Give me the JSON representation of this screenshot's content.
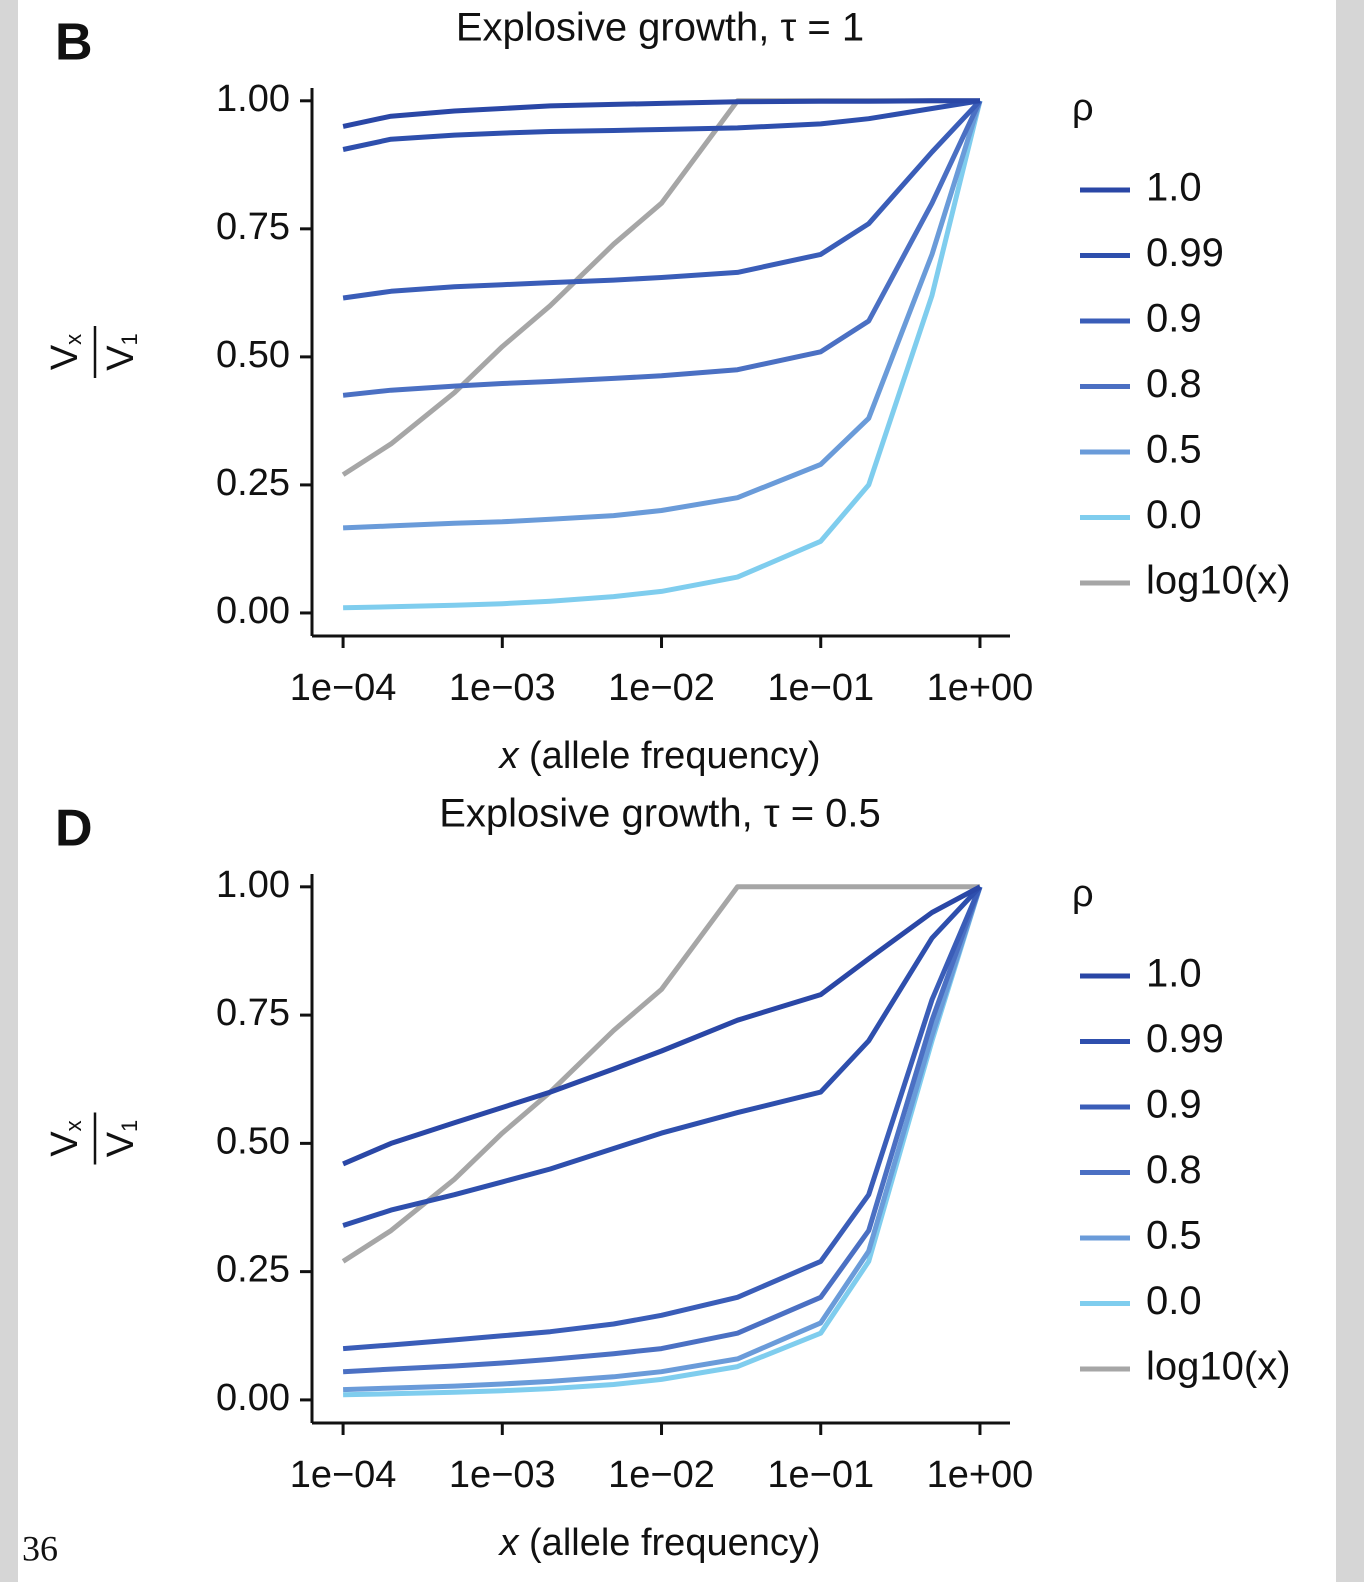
{
  "chart_data": [
    {
      "type": "line",
      "panel": "B",
      "title": "Explosive growth, τ = 1",
      "xlabel": {
        "var": "x",
        "text": "(allele frequency)"
      },
      "ylabel": {
        "num": "V",
        "num_sub": "x",
        "den": "V",
        "den_sub": "1"
      },
      "xscale": "log",
      "legend_title": "ρ",
      "legend_position": "right",
      "x": [
        0.0001,
        0.0002,
        0.0005,
        0.001,
        0.002,
        0.005,
        0.01,
        0.03,
        0.1,
        0.2,
        0.5,
        1
      ],
      "xlim": [
        6.38e-05,
        1.544
      ],
      "ylim": [
        -0.045,
        1.025
      ],
      "xticks": [
        {
          "value": 0.0001,
          "label": "1e−04"
        },
        {
          "value": 0.001,
          "label": "1e−03"
        },
        {
          "value": 0.01,
          "label": "1e−02"
        },
        {
          "value": 0.1,
          "label": "1e−01"
        },
        {
          "value": 1,
          "label": "1e+00"
        }
      ],
      "yticks": [
        {
          "value": 0,
          "label": "0.00"
        },
        {
          "value": 0.25,
          "label": "0.25"
        },
        {
          "value": 0.5,
          "label": "0.50"
        },
        {
          "value": 0.75,
          "label": "0.75"
        },
        {
          "value": 1,
          "label": "1.00"
        }
      ],
      "series": [
        {
          "name": "1.0",
          "color": "#2a47a6",
          "values": [
            0.95,
            0.97,
            0.98,
            0.985,
            0.99,
            0.993,
            0.995,
            0.998,
            0.999,
            0.999,
            1,
            1
          ]
        },
        {
          "name": "0.99",
          "color": "#2e4fad",
          "values": [
            0.905,
            0.925,
            0.933,
            0.937,
            0.94,
            0.942,
            0.944,
            0.947,
            0.955,
            0.965,
            0.985,
            1
          ]
        },
        {
          "name": "0.9",
          "color": "#3a5db8",
          "values": [
            0.615,
            0.628,
            0.637,
            0.641,
            0.645,
            0.65,
            0.655,
            0.665,
            0.7,
            0.76,
            0.9,
            1
          ]
        },
        {
          "name": "0.8",
          "color": "#4b70c3",
          "values": [
            0.425,
            0.435,
            0.443,
            0.448,
            0.452,
            0.458,
            0.463,
            0.475,
            0.51,
            0.57,
            0.8,
            1
          ]
        },
        {
          "name": "0.5",
          "color": "#6a9bd9",
          "values": [
            0.166,
            0.17,
            0.175,
            0.178,
            0.183,
            0.19,
            0.2,
            0.225,
            0.29,
            0.38,
            0.7,
            1
          ]
        },
        {
          "name": "0.0",
          "color": "#7fcdee",
          "values": [
            0.01,
            0.012,
            0.015,
            0.018,
            0.023,
            0.032,
            0.042,
            0.07,
            0.14,
            0.25,
            0.62,
            1
          ]
        },
        {
          "name": "log10(x)",
          "color": "#a6a6a6",
          "values": [
            0.27,
            0.33,
            0.43,
            0.52,
            0.6,
            0.72,
            0.8,
            1,
            1,
            1,
            1,
            1
          ]
        }
      ]
    },
    {
      "type": "line",
      "panel": "D",
      "title": "Explosive growth, τ = 0.5",
      "xlabel": {
        "var": "x",
        "text": "(allele frequency)"
      },
      "ylabel": {
        "num": "V",
        "num_sub": "x",
        "den": "V",
        "den_sub": "1"
      },
      "xscale": "log",
      "legend_title": "ρ",
      "legend_position": "right",
      "x": [
        0.0001,
        0.0002,
        0.0005,
        0.001,
        0.002,
        0.005,
        0.01,
        0.03,
        0.1,
        0.2,
        0.5,
        1
      ],
      "xlim": [
        6.38e-05,
        1.544
      ],
      "ylim": [
        -0.045,
        1.025
      ],
      "xticks": [
        {
          "value": 0.0001,
          "label": "1e−04"
        },
        {
          "value": 0.001,
          "label": "1e−03"
        },
        {
          "value": 0.01,
          "label": "1e−02"
        },
        {
          "value": 0.1,
          "label": "1e−01"
        },
        {
          "value": 1,
          "label": "1e+00"
        }
      ],
      "yticks": [
        {
          "value": 0,
          "label": "0.00"
        },
        {
          "value": 0.25,
          "label": "0.25"
        },
        {
          "value": 0.5,
          "label": "0.50"
        },
        {
          "value": 0.75,
          "label": "0.75"
        },
        {
          "value": 1,
          "label": "1.00"
        }
      ],
      "series": [
        {
          "name": "1.0",
          "color": "#2a47a6",
          "values": [
            0.46,
            0.5,
            0.54,
            0.57,
            0.6,
            0.645,
            0.68,
            0.74,
            0.79,
            0.86,
            0.95,
            1
          ]
        },
        {
          "name": "0.99",
          "color": "#2e4fad",
          "values": [
            0.34,
            0.37,
            0.4,
            0.425,
            0.45,
            0.49,
            0.52,
            0.56,
            0.6,
            0.7,
            0.9,
            1
          ]
        },
        {
          "name": "0.9",
          "color": "#3a5db8",
          "values": [
            0.1,
            0.107,
            0.117,
            0.125,
            0.133,
            0.148,
            0.165,
            0.2,
            0.27,
            0.4,
            0.78,
            1
          ]
        },
        {
          "name": "0.8",
          "color": "#4b70c3",
          "values": [
            0.055,
            0.06,
            0.066,
            0.072,
            0.079,
            0.09,
            0.1,
            0.13,
            0.2,
            0.33,
            0.74,
            1
          ]
        },
        {
          "name": "0.5",
          "color": "#6a9bd9",
          "values": [
            0.02,
            0.023,
            0.027,
            0.031,
            0.036,
            0.045,
            0.055,
            0.08,
            0.15,
            0.29,
            0.71,
            1
          ]
        },
        {
          "name": "0.0",
          "color": "#7fcdee",
          "values": [
            0.01,
            0.012,
            0.015,
            0.018,
            0.022,
            0.03,
            0.04,
            0.065,
            0.13,
            0.27,
            0.7,
            1
          ]
        },
        {
          "name": "log10(x)",
          "color": "#a6a6a6",
          "values": [
            0.27,
            0.33,
            0.43,
            0.52,
            0.6,
            0.72,
            0.8,
            1,
            1,
            1,
            1,
            1
          ]
        }
      ]
    }
  ],
  "page_number": "36"
}
